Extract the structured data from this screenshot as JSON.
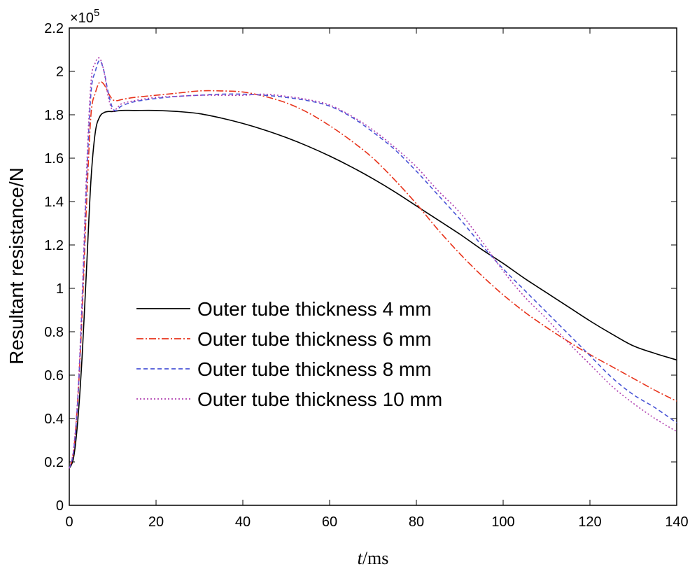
{
  "chart_data": {
    "type": "line",
    "xlabel_italic": "t",
    "xlabel_rest": "/ms",
    "ylabel": "Resultant resistance/N",
    "y_exponent_base": "×10",
    "y_exponent_power": "5",
    "xlim": [
      0,
      140
    ],
    "ylim": [
      0,
      2.2
    ],
    "x_ticks": [
      "0",
      "20",
      "40",
      "60",
      "80",
      "100",
      "120",
      "140"
    ],
    "y_ticks": [
      "0",
      "0.2",
      "0.4",
      "0.6",
      "0.8",
      "1",
      "1.2",
      "1.4",
      "1.6",
      "1.8",
      "2",
      "2.2"
    ],
    "x_tick_values": [
      0,
      20,
      40,
      60,
      80,
      100,
      120,
      140
    ],
    "y_tick_values": [
      0,
      0.2,
      0.4,
      0.6,
      0.8,
      1,
      1.2,
      1.4,
      1.6,
      1.8,
      2,
      2.2
    ],
    "grid": false,
    "legend_position": "center-left",
    "series": [
      {
        "name": "Outer tube thickness 4 mm",
        "color": "#000000",
        "dash": "",
        "x": [
          0,
          1,
          2,
          3,
          4,
          5,
          6,
          7,
          8,
          9,
          10,
          12,
          15,
          20,
          25,
          30,
          35,
          40,
          45,
          50,
          55,
          60,
          65,
          70,
          75,
          80,
          85,
          90,
          95,
          100,
          105,
          110,
          115,
          120,
          125,
          130,
          135,
          140
        ],
        "y": [
          0.17,
          0.22,
          0.4,
          0.7,
          1.1,
          1.5,
          1.72,
          1.79,
          1.81,
          1.815,
          1.815,
          1.82,
          1.82,
          1.82,
          1.815,
          1.805,
          1.785,
          1.76,
          1.73,
          1.695,
          1.655,
          1.61,
          1.56,
          1.505,
          1.445,
          1.38,
          1.315,
          1.25,
          1.18,
          1.115,
          1.045,
          0.98,
          0.915,
          0.85,
          0.79,
          0.735,
          0.7,
          0.67
        ]
      },
      {
        "name": "Outer tube thickness 6 mm",
        "color": "#e8341c",
        "dash": "10,3,2,3",
        "x": [
          0,
          1,
          2,
          3,
          4,
          5,
          6,
          7,
          8,
          9,
          10,
          11,
          12,
          15,
          20,
          25,
          30,
          35,
          40,
          45,
          50,
          55,
          60,
          65,
          70,
          75,
          80,
          85,
          90,
          95,
          100,
          105,
          110,
          115,
          120,
          125,
          130,
          135,
          140
        ],
        "y": [
          0.17,
          0.25,
          0.5,
          0.9,
          1.4,
          1.8,
          1.9,
          1.95,
          1.94,
          1.9,
          1.87,
          1.865,
          1.87,
          1.88,
          1.89,
          1.9,
          1.91,
          1.91,
          1.905,
          1.885,
          1.855,
          1.81,
          1.75,
          1.68,
          1.6,
          1.5,
          1.39,
          1.27,
          1.16,
          1.06,
          0.97,
          0.89,
          0.82,
          0.755,
          0.695,
          0.64,
          0.585,
          0.53,
          0.48
        ]
      },
      {
        "name": "Outer tube thickness 8 mm",
        "color": "#4a55d6",
        "dash": "6,4",
        "x": [
          0,
          1,
          2,
          3,
          4,
          5,
          6,
          7,
          8,
          9,
          10,
          11,
          12,
          15,
          20,
          25,
          30,
          35,
          40,
          45,
          50,
          55,
          60,
          65,
          70,
          75,
          80,
          85,
          90,
          95,
          100,
          105,
          110,
          115,
          120,
          125,
          130,
          135,
          140
        ],
        "y": [
          0.17,
          0.25,
          0.5,
          0.95,
          1.5,
          1.9,
          2.0,
          2.05,
          2.0,
          1.9,
          1.83,
          1.82,
          1.84,
          1.86,
          1.875,
          1.885,
          1.89,
          1.895,
          1.895,
          1.89,
          1.88,
          1.865,
          1.84,
          1.79,
          1.72,
          1.64,
          1.54,
          1.43,
          1.32,
          1.2,
          1.09,
          0.99,
          0.89,
          0.79,
          0.69,
          0.59,
          0.51,
          0.45,
          0.38
        ]
      },
      {
        "name": "Outer tube thickness 10 mm",
        "color": "#b040b0",
        "dash": "2,3",
        "x": [
          0,
          1,
          2,
          3,
          4,
          5,
          6,
          7,
          8,
          9,
          10,
          11,
          12,
          15,
          20,
          25,
          30,
          35,
          40,
          45,
          50,
          55,
          60,
          65,
          70,
          75,
          80,
          85,
          90,
          95,
          100,
          105,
          110,
          115,
          120,
          125,
          130,
          135,
          140
        ],
        "y": [
          0.17,
          0.26,
          0.52,
          0.98,
          1.55,
          1.95,
          2.04,
          2.06,
          2.0,
          1.88,
          1.82,
          1.83,
          1.85,
          1.865,
          1.88,
          1.885,
          1.89,
          1.89,
          1.89,
          1.895,
          1.885,
          1.87,
          1.845,
          1.795,
          1.73,
          1.65,
          1.56,
          1.45,
          1.35,
          1.22,
          1.08,
          0.96,
          0.86,
          0.75,
          0.65,
          0.55,
          0.47,
          0.4,
          0.34
        ]
      }
    ]
  }
}
